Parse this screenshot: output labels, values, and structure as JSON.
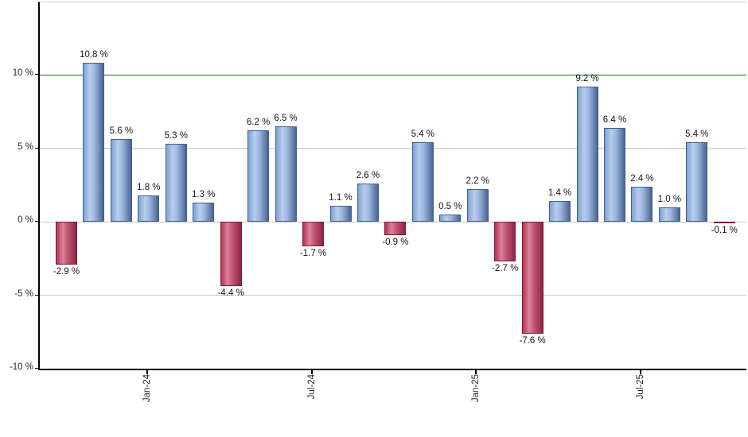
{
  "chart_data": {
    "type": "bar",
    "title": "",
    "xlabel": "",
    "ylabel": "",
    "unit": "%",
    "values": [
      -2.9,
      10.8,
      5.6,
      1.8,
      5.3,
      1.3,
      -4.4,
      6.2,
      6.5,
      -1.7,
      1.1,
      2.6,
      -0.9,
      5.4,
      0.5,
      2.2,
      -2.7,
      -7.6,
      1.4,
      9.2,
      6.4,
      2.4,
      1.0,
      5.4,
      -0.1
    ],
    "bar_labels": [
      "-2.9 %",
      "10.8 %",
      "5.6 %",
      "1.8 %",
      "5.3 %",
      "1.3 %",
      "-4.4 %",
      "6.2 %",
      "6.5 %",
      "-1.7 %",
      "1.1 %",
      "2.6 %",
      "-0.9 %",
      "5.4 %",
      "0.5 %",
      "2.2 %",
      "-2.7 %",
      "-7.6 %",
      "1.4 %",
      "9.2 %",
      "6.4 %",
      "2.4 %",
      "1.0 %",
      "5.4 %",
      "-0.1 %"
    ],
    "x_tick_labels": [
      {
        "index": 3,
        "label": "Jan-24"
      },
      {
        "index": 9,
        "label": "Jul-24"
      },
      {
        "index": 15,
        "label": "Jan-25"
      },
      {
        "index": 21,
        "label": "Jul-25"
      }
    ],
    "y_ticks": [
      {
        "value": 10,
        "label": "10 %"
      },
      {
        "value": 5,
        "label": "5 %"
      },
      {
        "value": 0,
        "label": "0 %"
      },
      {
        "value": -5,
        "label": "-5 %"
      },
      {
        "value": -10,
        "label": "-10 %"
      }
    ],
    "ylim": [
      -10.1,
      14.9
    ],
    "grid": true,
    "legend_position": "none",
    "reference_line": {
      "value": 10,
      "color": "#007a00"
    },
    "colors": {
      "positive_fill": "#a9c3e8",
      "positive_edge": "#40608e",
      "negative_fill": "#de8199",
      "negative_edge": "#7c1b34",
      "gridline": "#c4c4c4",
      "axis": "#000000"
    }
  }
}
